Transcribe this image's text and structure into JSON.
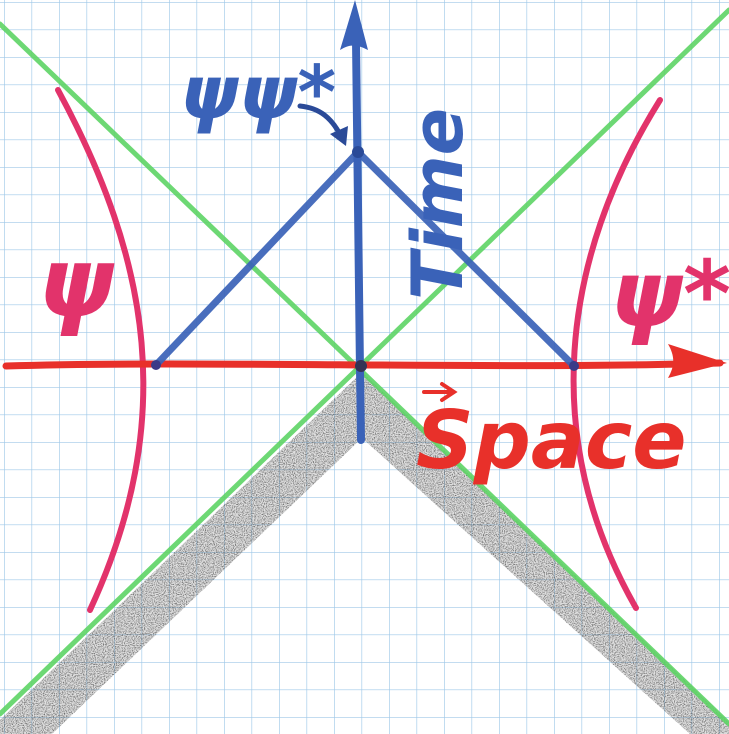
{
  "labels": {
    "psi_psi_star": "ψψ*",
    "time": "Time",
    "psi": "ψ",
    "psi_star": "ψ*",
    "space": "Space"
  },
  "colors": {
    "paper": "#ffffff",
    "grid": "#9fc8e8",
    "light_cone": "#5ed465",
    "axes_red": "#e8302a",
    "time_blue": "#3a62b8",
    "hyperbola": "#e2336b",
    "shading": "#333333"
  }
}
